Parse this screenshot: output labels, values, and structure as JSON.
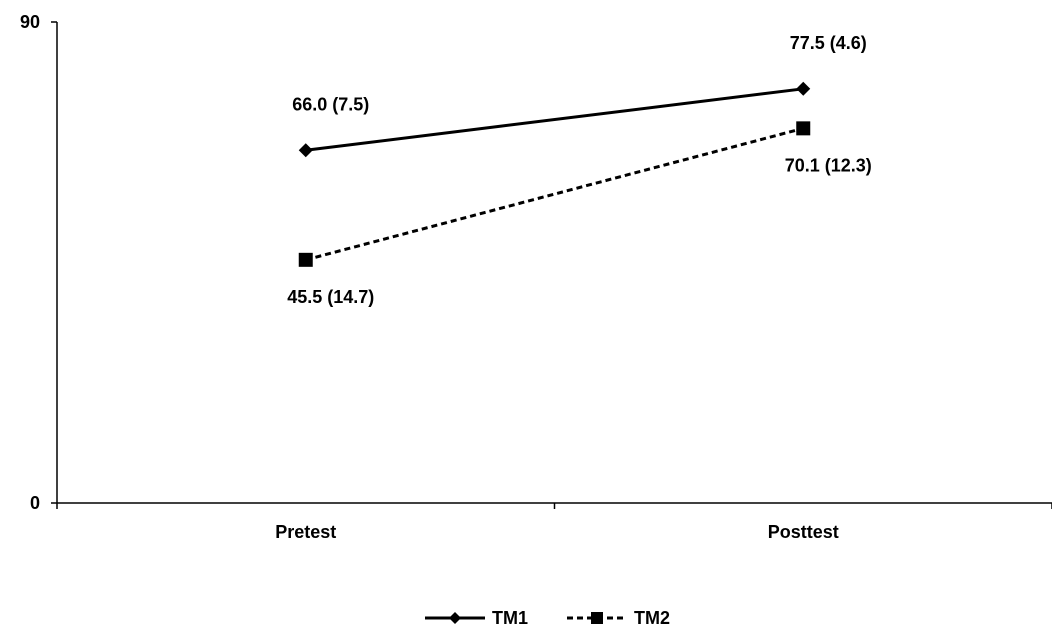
{
  "chart_data": {
    "type": "line",
    "categories": [
      "Pretest",
      "Posttest"
    ],
    "series": [
      {
        "name": "TM1",
        "values": [
          66.0,
          77.5
        ],
        "labels": [
          "66.0 (7.5)",
          "77.5 (4.6)"
        ],
        "line_style": "solid",
        "marker": "diamond",
        "color": "#000000"
      },
      {
        "name": "TM2",
        "values": [
          45.5,
          70.1
        ],
        "labels": [
          "45.5 (14.7)",
          "70.1 (12.3)"
        ],
        "line_style": "dashed",
        "marker": "square",
        "color": "#000000"
      }
    ],
    "ylim": [
      0,
      90
    ],
    "ytick_labels": [
      "0",
      "90"
    ],
    "grid": false,
    "legend_position": "bottom-center"
  }
}
